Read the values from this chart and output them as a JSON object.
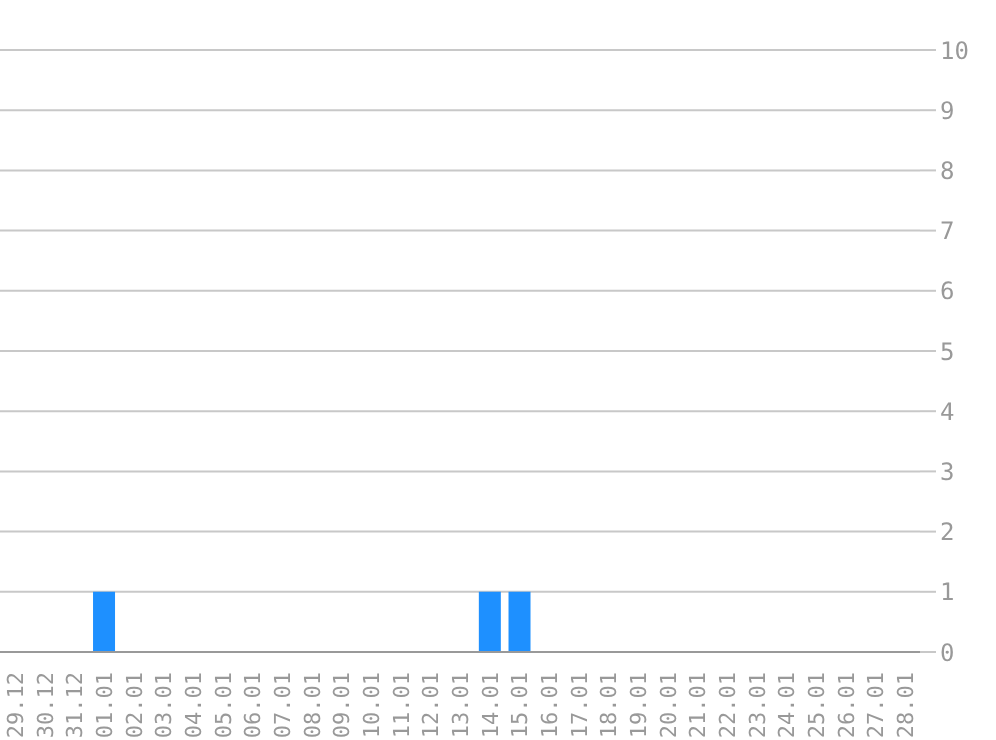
{
  "chart_data": {
    "type": "bar",
    "categories": [
      "29.12",
      "30.12",
      "31.12",
      "01.01",
      "02.01",
      "03.01",
      "04.01",
      "05.01",
      "06.01",
      "07.01",
      "08.01",
      "09.01",
      "10.01",
      "11.01",
      "12.01",
      "13.01",
      "14.01",
      "15.01",
      "16.01",
      "17.01",
      "18.01",
      "19.01",
      "20.01",
      "21.01",
      "22.01",
      "23.01",
      "24.01",
      "25.01",
      "26.01",
      "27.01",
      "28.01"
    ],
    "values": [
      0,
      0,
      0,
      1,
      0,
      0,
      0,
      0,
      0,
      0,
      0,
      0,
      0,
      0,
      0,
      0,
      1,
      1,
      0,
      0,
      0,
      0,
      0,
      0,
      0,
      0,
      0,
      0,
      0,
      0,
      0
    ],
    "color": "#1e90ff",
    "ylim": [
      0,
      10
    ],
    "yticks": [
      0,
      1,
      2,
      3,
      4,
      5,
      6,
      7,
      8,
      9,
      10
    ],
    "grid": "y",
    "legend": false
  }
}
